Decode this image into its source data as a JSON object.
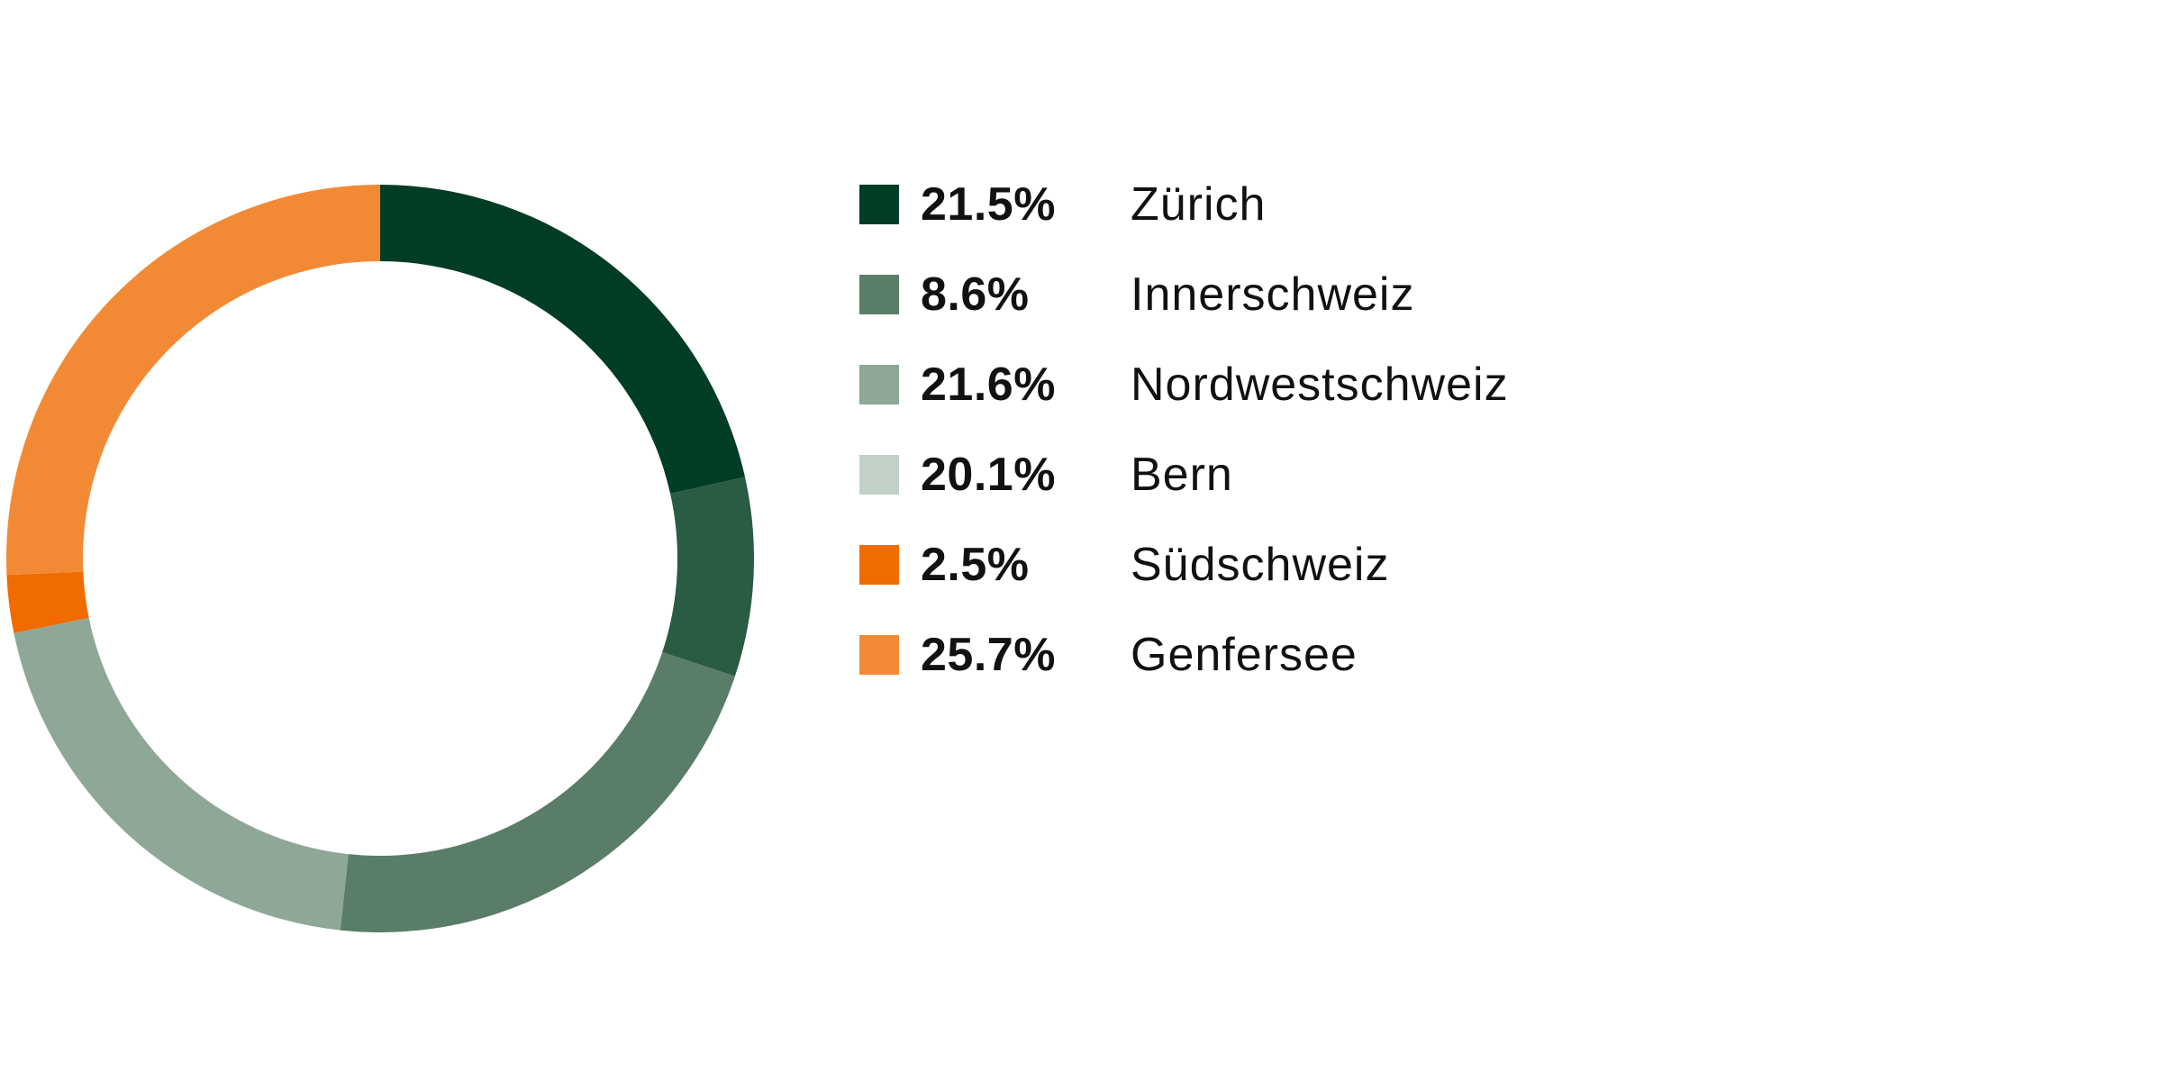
{
  "chart_data": {
    "type": "pie",
    "variant": "donut",
    "title": "",
    "slices": [
      {
        "label": "Zürich",
        "value": 21.5,
        "display": "21.5%",
        "color": "#003d24",
        "arc_color": "#003d24"
      },
      {
        "label": "Innerschweiz",
        "value": 8.6,
        "display": "8.6%",
        "color": "#5a7d68",
        "arc_color": "#2a5b43"
      },
      {
        "label": "Nordwestschweiz",
        "value": 21.6,
        "display": "21.6%",
        "color": "#8fa796",
        "arc_color": "#5a7d68"
      },
      {
        "label": "Bern",
        "value": 20.1,
        "display": "20.1%",
        "color": "#c2d1c6",
        "arc_color": "#8fa796"
      },
      {
        "label": "Südschweiz",
        "value": 2.5,
        "display": "2.5%",
        "color": "#f06b00",
        "arc_color": "#f06b00"
      },
      {
        "label": "Genfersee",
        "value": 25.7,
        "display": "25.7%",
        "color": "#f28a35",
        "arc_color": "#f28a35"
      }
    ],
    "legend_position": "right"
  }
}
